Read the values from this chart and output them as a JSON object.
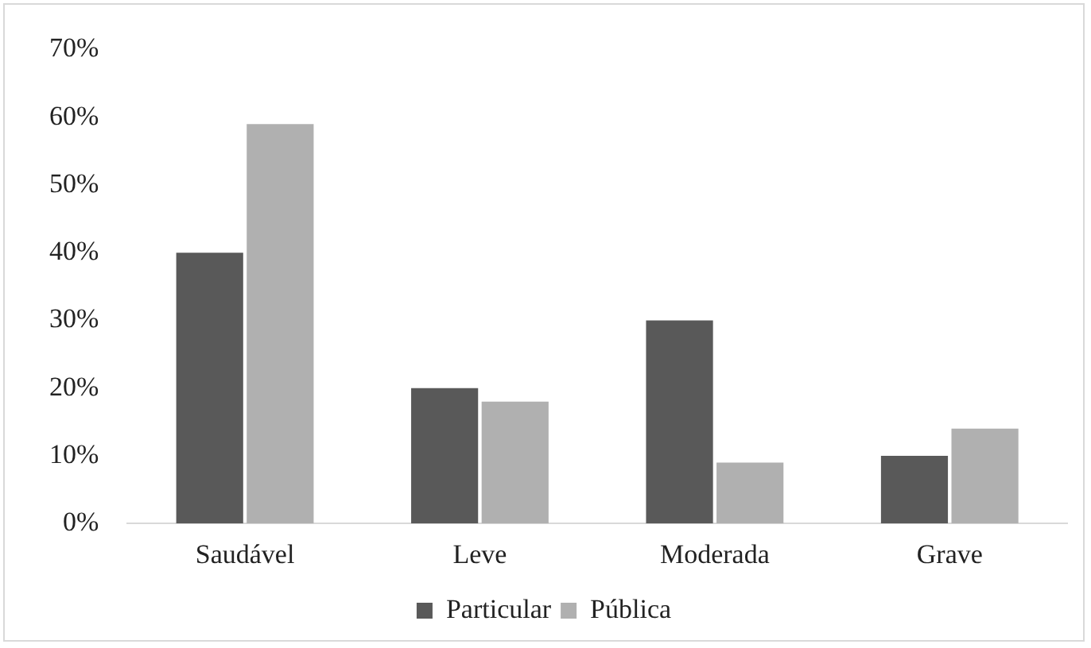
{
  "chart_data": {
    "type": "bar",
    "categories": [
      "Saudável",
      "Leve",
      "Moderada",
      "Grave"
    ],
    "series": [
      {
        "name": "Particular",
        "color": "#595959",
        "values": [
          40,
          20,
          30,
          10
        ]
      },
      {
        "name": "Pública",
        "color": "#b0b0b0",
        "values": [
          59,
          18,
          9,
          14
        ]
      }
    ],
    "ylim": [
      0,
      70
    ],
    "yticks": [
      {
        "value": 0,
        "label": "0%"
      },
      {
        "value": 10,
        "label": "10%"
      },
      {
        "value": 20,
        "label": "20%"
      },
      {
        "value": 30,
        "label": "30%"
      },
      {
        "value": 40,
        "label": "40%"
      },
      {
        "value": 50,
        "label": "50%"
      },
      {
        "value": 60,
        "label": "60%"
      },
      {
        "value": 70,
        "label": "70%"
      }
    ],
    "grid": false,
    "legend": "bottom"
  }
}
